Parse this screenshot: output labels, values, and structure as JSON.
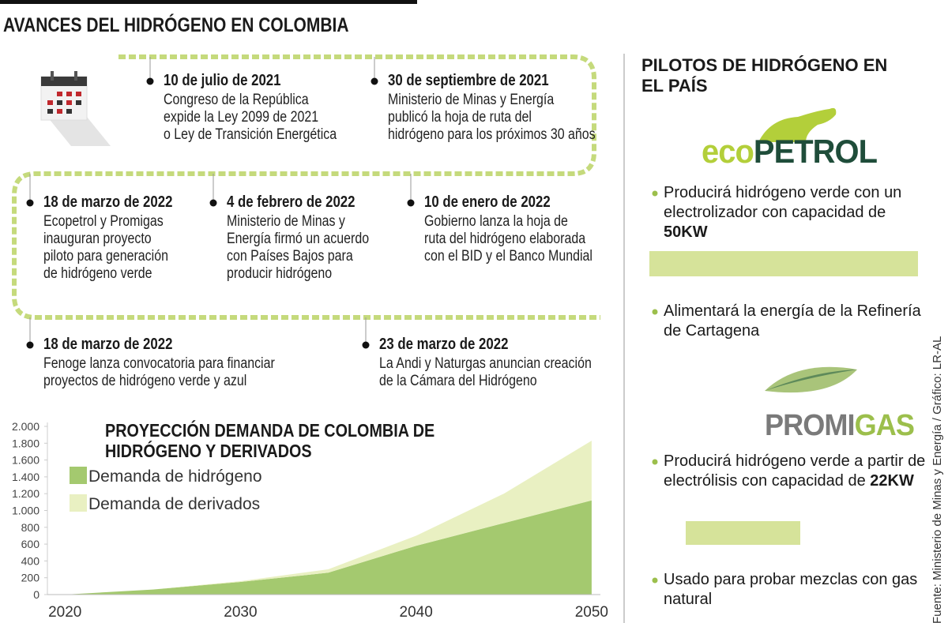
{
  "header": {
    "title": "AVANCES DEL HIDRÓGENO EN COLOMBIA"
  },
  "timeline": [
    {
      "date": "10 de julio de 2021",
      "lines": [
        "Congreso de la República",
        "expide la Ley 2099 de 2021",
        "o Ley de Transición Energética"
      ]
    },
    {
      "date": "30 de septiembre de 2021",
      "lines": [
        "Ministerio de Minas y Energía",
        "publicó la hoja de ruta del",
        "hidrógeno para los próximos 30 años"
      ]
    },
    {
      "date": "18 de marzo de 2022",
      "lines": [
        "Ecopetrol y Promigas",
        "inauguran proyecto",
        "piloto para generación",
        "de hidrógeno verde"
      ]
    },
    {
      "date": "4 de febrero de 2022",
      "lines": [
        "Ministerio de Minas y",
        "Energía firmó un acuerdo",
        "con Países Bajos para",
        "producir hidrógeno"
      ]
    },
    {
      "date": "10 de enero de 2022",
      "lines": [
        "Gobierno lanza la hoja de",
        "ruta del hidrógeno elaborada",
        "con el BID y el Banco Mundial"
      ]
    },
    {
      "date": "18 de marzo de 2022",
      "lines": [
        "Fenoge lanza convocatoria para financiar",
        "proyectos de hidrógeno verde y azul"
      ]
    },
    {
      "date": "23 de marzo de 2022",
      "lines": [
        "La Andi y Naturgas anuncian creación",
        "de la Cámara del Hidrógeno"
      ]
    }
  ],
  "chart_data": {
    "type": "stacked_area",
    "title": "PROYECCIÓN DEMANDA DE COLOMBIA DE HIDRÓGENO Y DERIVADOS",
    "x": [
      2020,
      2025,
      2030,
      2035,
      2040,
      2045,
      2050
    ],
    "series": [
      {
        "name": "Demanda de hidrógeno",
        "color": "#a4c96f",
        "values": [
          0,
          60,
          150,
          260,
          580,
          850,
          1120
        ]
      },
      {
        "name": "Demanda de derivados",
        "color": "#e9f0c2",
        "values": [
          0,
          0,
          10,
          40,
          120,
          350,
          710
        ]
      }
    ],
    "xlim": [
      2019,
      2050.5
    ],
    "xticks": [
      2020,
      2030,
      2040,
      2050
    ],
    "ylim": [
      0,
      2000
    ],
    "yticks": [
      0,
      200,
      400,
      600,
      800,
      {
        "value": 1000,
        "label": "1.000"
      },
      {
        "value": 1200,
        "label": "1.200"
      },
      {
        "value": 1400,
        "label": "1.400"
      },
      {
        "value": 1600,
        "label": "1.600"
      },
      {
        "value": 1800,
        "label": "1.800"
      },
      {
        "value": 2000,
        "label": "2.000"
      }
    ]
  },
  "pilots": {
    "title": "PILOTOS DE HIDRÓGENO EN EL PAÍS",
    "companies": [
      {
        "logo": [
          "eco",
          "PETROL"
        ],
        "bullets": [
          {
            "text": "Producirá hidrógeno verde con un electrolizador con capacidad de ",
            "bold": "50KW"
          },
          {
            "text": "Alimentará la energía de la Refinería de Cartagena"
          }
        ]
      },
      {
        "logo": [
          "PROMI",
          "GAS"
        ],
        "bullets": [
          {
            "text": "Producirá hidrógeno verde a partir de electrólisis con capacidad de ",
            "bold": "22KW"
          },
          {
            "text": "Usado para probar mezclas con gas natural"
          }
        ]
      }
    ]
  },
  "source": "Fuente: Ministerio de Minas y Energía / Gráfico: LR-AL"
}
